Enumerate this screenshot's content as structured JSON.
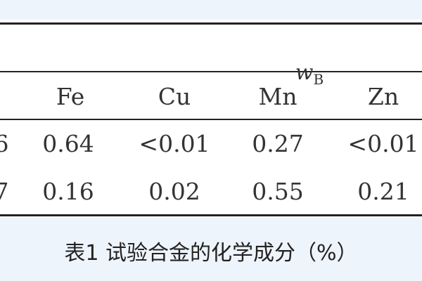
{
  "table": {
    "unit_symbol": "w",
    "unit_subscript": "B",
    "headers": [
      "Fe",
      "Cu",
      "Mn",
      "Zn"
    ],
    "rows": [
      {
        "left_partial": "6",
        "cells": [
          "0.64",
          "<0.01",
          "0.27",
          "<0.01"
        ]
      },
      {
        "left_partial": "7",
        "cells": [
          "0.16",
          "0.02",
          "0.55",
          "0.21"
        ]
      }
    ]
  },
  "caption": "表1 试验合金的化学成分（%）"
}
